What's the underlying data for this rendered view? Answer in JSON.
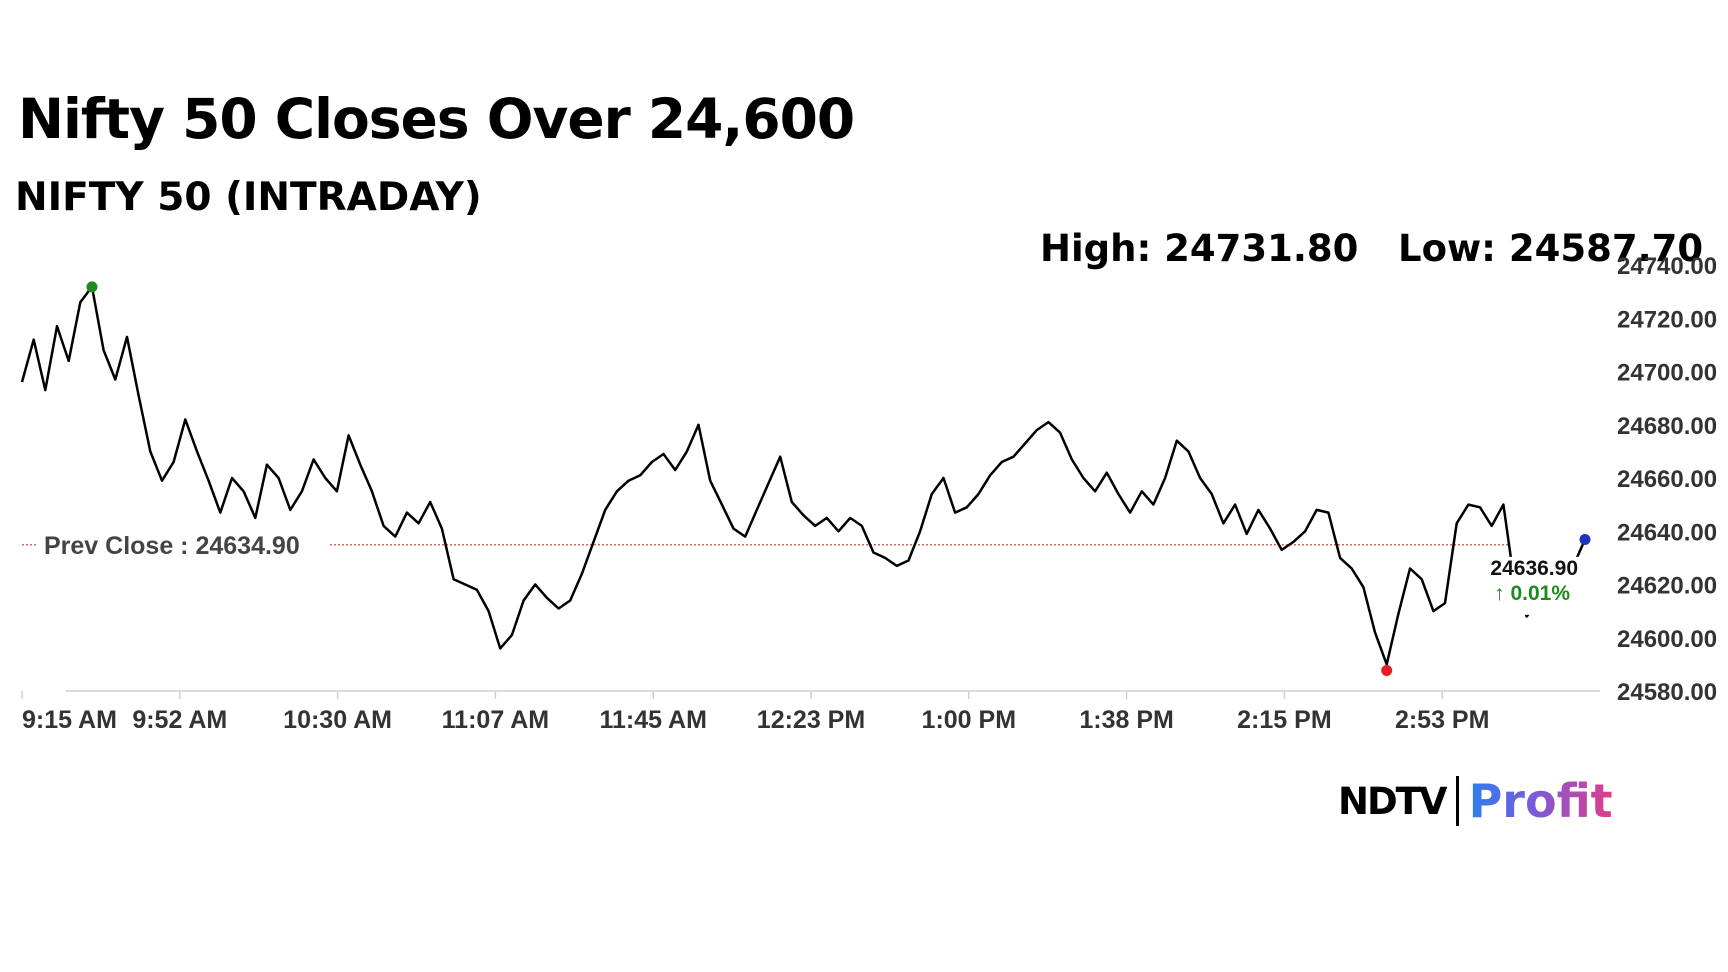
{
  "header": {
    "title": "Nifty 50 Closes Over 24,600",
    "subtitle": "NIFTY 50 (INTRADAY)",
    "high_label": "High: 24731.80",
    "low_label": "Low: 24587.70"
  },
  "chart_data": {
    "type": "line",
    "series": [
      {
        "values": [
          24696,
          24712,
          24693,
          24717,
          24704,
          24726,
          24731.8,
          24708,
          24697,
          24713,
          24691,
          24670,
          24659,
          24666,
          24682,
          24670,
          24659,
          24647,
          24660,
          24655,
          24645,
          24665,
          24660,
          24648,
          24655,
          24667,
          24660,
          24655,
          24676,
          24665,
          24655,
          24642,
          24638,
          24647,
          24643,
          24651,
          24641,
          24622,
          24620,
          24618,
          24610,
          24596,
          24601,
          24614,
          24620,
          24615,
          24611,
          24614,
          24624,
          24636,
          24648,
          24655,
          24659,
          24661,
          24666,
          24669,
          24663,
          24670,
          24680,
          24659,
          24650,
          24641,
          24638,
          24648,
          24658,
          24668,
          24651,
          24646,
          24642,
          24645,
          24640,
          24645,
          24642,
          24632,
          24630,
          24627,
          24629,
          24640,
          24654,
          24660,
          24647,
          24649,
          24654,
          24661,
          24666,
          24668,
          24673,
          24678,
          24681,
          24677,
          24667,
          24660,
          24655,
          24662,
          24654,
          24647,
          24655,
          24650,
          24660,
          24674,
          24670,
          24660,
          24654,
          24643,
          24650,
          24639,
          24648,
          24641,
          24633,
          24636,
          24640,
          24648,
          24647,
          24630,
          24626,
          24619,
          24602,
          24590,
          24609,
          24626,
          24622,
          24610,
          24613,
          24643,
          24650,
          24649,
          24642,
          24650,
          24619,
          24608,
          24614,
          24628,
          24624,
          24627,
          24636.9
        ]
      }
    ],
    "x_tick_labels": [
      "9:15 AM",
      "9:52 AM",
      "10:30 AM",
      "11:07 AM",
      "11:45 AM",
      "12:23 PM",
      "1:00 PM",
      "1:38 PM",
      "2:15 PM",
      "2:53 PM"
    ],
    "y_tick_labels": [
      "24740.00",
      "24720.00",
      "24700.00",
      "24680.00",
      "24660.00",
      "24640.00",
      "24620.00",
      "24600.00",
      "24580.00"
    ],
    "ylim": [
      24580,
      24740
    ],
    "prev_close": 24634.9,
    "prev_close_label": "Prev Close : 24634.90",
    "last_value_label": "24636.90",
    "change_label": "↑ 0.01%",
    "high_point": {
      "x_index": 6,
      "value": 24731.8
    },
    "low_point": {
      "x_index": 117,
      "value": 24587.7
    },
    "colors": {
      "line": "#000000",
      "prev_close_line": "#c0392b",
      "high_marker": "#1f8a1f",
      "low_marker": "#e81d24",
      "last_marker": "#2233bb",
      "change_text": "#1f8a1f",
      "tick_text": "#333333",
      "axis": "#d0d0d0"
    },
    "grid": false
  },
  "branding": {
    "ndtv": "NDTV",
    "profit": "Profit"
  }
}
